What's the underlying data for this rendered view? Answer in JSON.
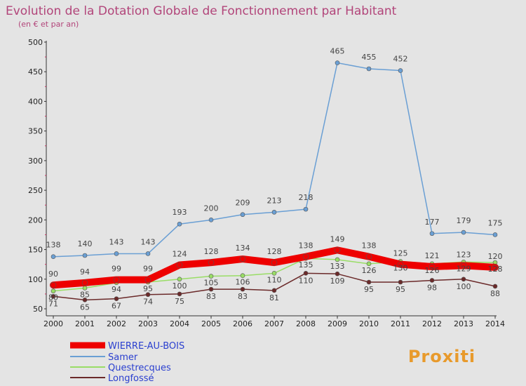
{
  "chart_data": {
    "type": "line",
    "title": "Evolution de la Dotation Globale de Fonctionnement par Habitant",
    "subtitle": "(en € et par an)",
    "x": [
      "2000",
      "2001",
      "2002",
      "2003",
      "2004",
      "2005",
      "2006",
      "2007",
      "2008",
      "2009",
      "2010",
      "2011",
      "2012",
      "2013",
      "2014"
    ],
    "ylim": [
      50,
      500
    ],
    "yticks": [
      50,
      100,
      150,
      200,
      250,
      300,
      350,
      400,
      450,
      500
    ],
    "grid": false,
    "legend_position": "bottom-left",
    "series": [
      {
        "name": "WIERRE-AU-BOIS",
        "color": "#ee0000",
        "values": [
          90,
          94,
          99,
          99,
          124,
          128,
          134,
          128,
          138,
          149,
          138,
          125,
          121,
          123,
          120
        ]
      },
      {
        "name": "Samer",
        "color": "#6a9fd4",
        "values": [
          138,
          140,
          143,
          143,
          193,
          200,
          209,
          213,
          218,
          465,
          455,
          452,
          177,
          179,
          175
        ]
      },
      {
        "name": "Questrecques",
        "color": "#99dd66",
        "values": [
          80,
          85,
          94,
          95,
          100,
          105,
          106,
          110,
          135,
          133,
          126,
          130,
          126,
          129,
          128
        ]
      },
      {
        "name": "Longfossé",
        "color": "#6b2a2a",
        "values": [
          71,
          65,
          67,
          74,
          75,
          83,
          83,
          81,
          110,
          109,
          95,
          95,
          98,
          100,
          88
        ]
      }
    ]
  },
  "logo": {
    "text": "Proxiti"
  }
}
